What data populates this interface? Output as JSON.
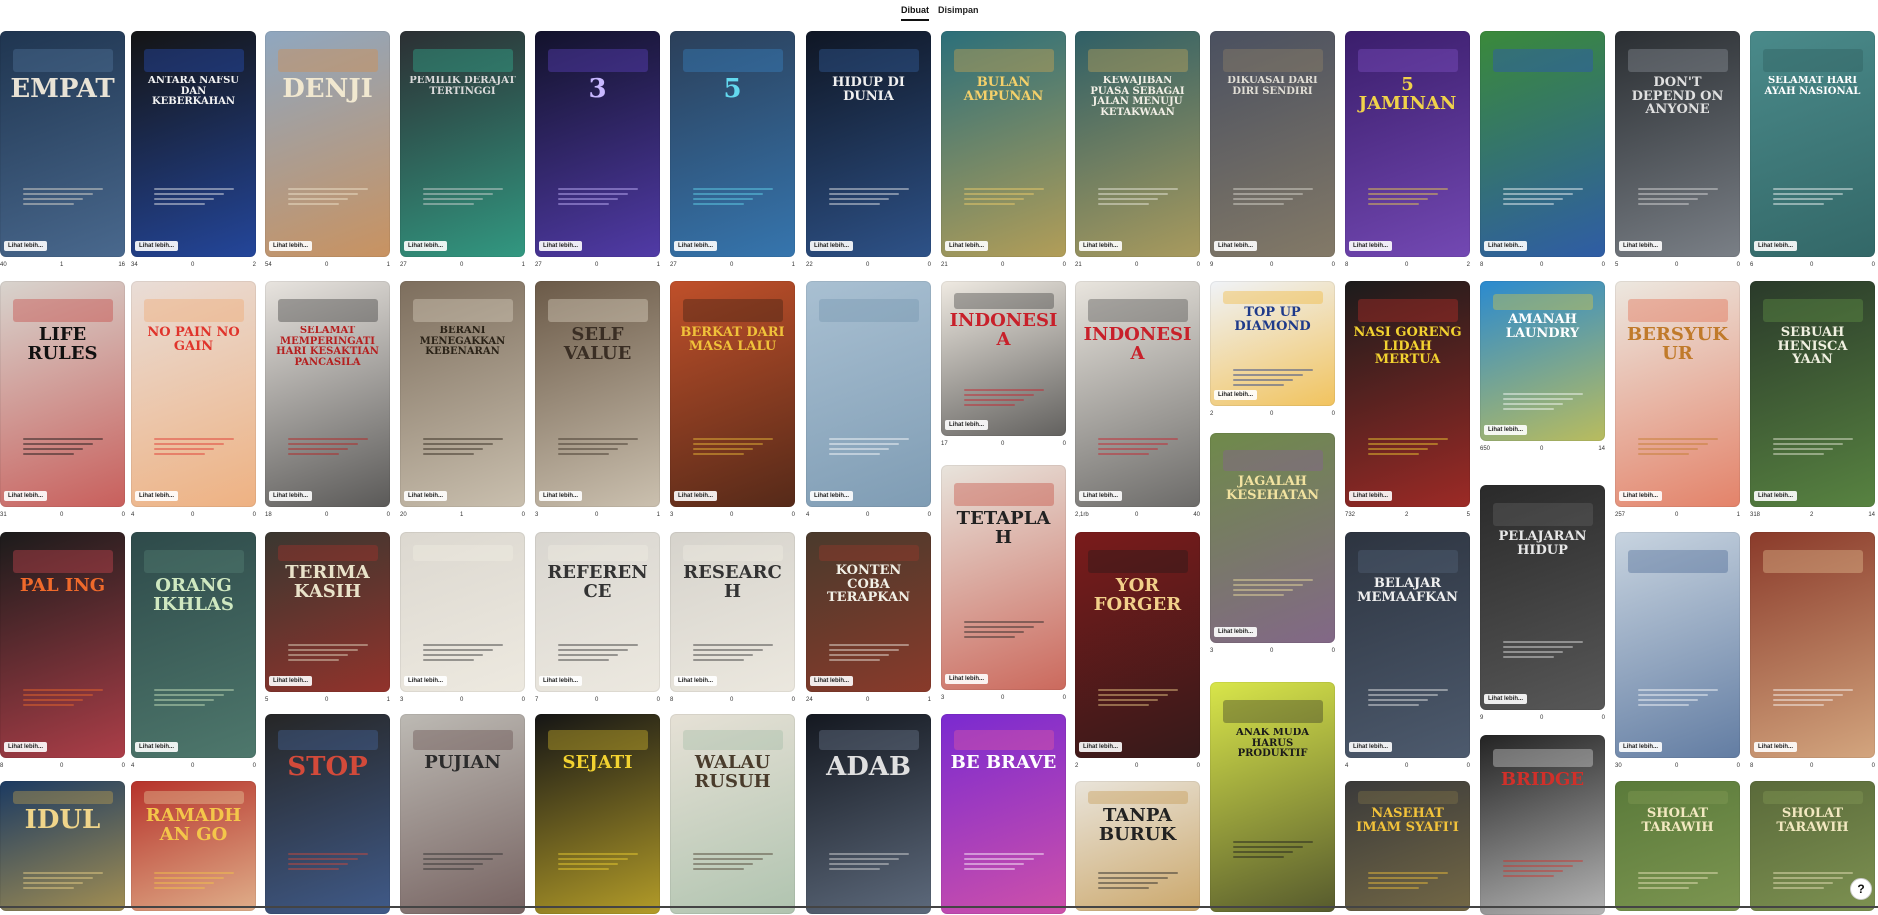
{
  "tabs": [
    {
      "label": "Dibuat",
      "active": true
    },
    {
      "label": "Disimpan",
      "active": false
    }
  ],
  "see_more_label": "Lihat lebih...",
  "help_icon": "?",
  "columns": [
    [
      {
        "title": "EMPAT",
        "bg": "#1f3550",
        "fg": "#e8e2d5",
        "acc": "#5a7da6",
        "stats": [
          "40",
          "1",
          "16"
        ]
      },
      {
        "title": "LIFE RULES",
        "bg": "#d8d4ce",
        "fg": "#111111",
        "acc": "#c2302e",
        "stats": [
          "31",
          "0",
          "0"
        ]
      },
      {
        "title": "PAL ING",
        "bg": "#1b1b1b",
        "fg": "#f06a2b",
        "acc": "#e64c5a",
        "stats": [
          "8",
          "0",
          "0"
        ]
      },
      {
        "title": "Idul",
        "bg": "#1b3a62",
        "fg": "#f0d58a",
        "acc": "#d8b04c",
        "stats": []
      }
    ],
    [
      {
        "title": "ANTARA NAFSU DAN KEBERKAHAN",
        "bg": "#141414",
        "fg": "#f2f2f2",
        "acc": "#2a5ad0",
        "stats": [
          "34",
          "0",
          "2"
        ]
      },
      {
        "title": "no pain no gain",
        "bg": "#e9ddd7",
        "fg": "#e0342c",
        "acc": "#f0a060",
        "stats": [
          "4",
          "0",
          "0"
        ]
      },
      {
        "title": "ORANG IKHLAS",
        "bg": "#2e4a4a",
        "fg": "#cfe8c0",
        "acc": "#5b8a7a",
        "stats": [
          "4",
          "0",
          "0"
        ]
      },
      {
        "title": "RAMADHAN GO",
        "bg": "#b6322a",
        "fg": "#f4c64a",
        "acc": "#f0e0b0",
        "stats": []
      }
    ],
    [
      {
        "title": "DENJI",
        "bg": "#8fa7c0",
        "fg": "#f1e8d0",
        "acc": "#e08a3a",
        "stats": [
          "54",
          "0",
          "1"
        ]
      },
      {
        "title": "SELAMAT MEMPERINGATI HARI KESAKTIAN PANCASILA",
        "bg": "#e8e4df",
        "fg": "#b51f1f",
        "acc": "#222222",
        "stats": [
          "18",
          "0",
          "0"
        ]
      },
      {
        "title": "TERIMA KASIH",
        "bg": "#3a3730",
        "fg": "#e9e2c9",
        "acc": "#b5312a",
        "stats": [
          "5",
          "0",
          "1"
        ]
      },
      {
        "title": "STOP",
        "bg": "#262626",
        "fg": "#d34a3a",
        "acc": "#4a6fb0",
        "stats": []
      }
    ],
    [
      {
        "title": "PEMILIK DERAJAT TERTINGGI",
        "bg": "#2c2f33",
        "fg": "#d9d9d9",
        "acc": "#34c2a0",
        "stats": [
          "27",
          "0",
          "1"
        ]
      },
      {
        "title": "BERANI MENEGAKKAN KEBENARAN",
        "bg": "#7d6e5d",
        "fg": "#2a2217",
        "acc": "#e8e0cf",
        "stats": [
          "20",
          "1",
          "0"
        ]
      },
      {
        "title": "",
        "bg": "#dcd8d0",
        "fg": "#333333",
        "acc": "#f4f0e6",
        "stats": [
          "3",
          "0",
          "0"
        ]
      },
      {
        "title": "PUJIAN",
        "bg": "#bdbab4",
        "fg": "#2c2c2c",
        "acc": "#5a4040",
        "stats": []
      }
    ],
    [
      {
        "title": "3",
        "bg": "#12122b",
        "fg": "#c8b8ff",
        "acc": "#6a4bd8",
        "stats": [
          "27",
          "0",
          "1"
        ]
      },
      {
        "title": "SELF VALUE",
        "bg": "#6b5a48",
        "fg": "#3a2e24",
        "acc": "#f1e9d8",
        "stats": [
          "3",
          "0",
          "1"
        ]
      },
      {
        "title": "REFERENCE",
        "bg": "#d9d6d0",
        "fg": "#333333",
        "acc": "#f4f0e6",
        "stats": [
          "7",
          "0",
          "0"
        ]
      },
      {
        "title": "SEJATI",
        "bg": "#151515",
        "fg": "#f2d230",
        "acc": "#f2d230",
        "stats": []
      }
    ],
    [
      {
        "title": "5",
        "bg": "#2b3f59",
        "fg": "#63d9ef",
        "acc": "#3a8bd0",
        "stats": [
          "27",
          "0",
          "1"
        ]
      },
      {
        "title": "BERKAT dari MASA LALU",
        "bg": "#c0502a",
        "fg": "#f0c23a",
        "acc": "#2a1a12",
        "stats": [
          "3",
          "0",
          "0"
        ]
      },
      {
        "title": "RESEARCH",
        "bg": "#d6d3cc",
        "fg": "#333333",
        "acc": "#f4f0e6",
        "stats": [
          "8",
          "0",
          "0"
        ]
      },
      {
        "title": "Walau rusuh",
        "bg": "#e6e1d6",
        "fg": "#4a3c2c",
        "acc": "#9ab8a0",
        "stats": []
      }
    ],
    [
      {
        "title": "HIDUP DI DUNIA",
        "bg": "#0f1624",
        "fg": "#f0f0f0",
        "acc": "#3a6ab0",
        "stats": [
          "22",
          "0",
          "0"
        ]
      },
      {
        "title": "",
        "bg": "#a9c0d2",
        "fg": "#ffffff",
        "acc": "#6e8ea8",
        "stats": [
          "4",
          "0",
          "0"
        ]
      },
      {
        "title": "KONTEN COBA TERAPKAN",
        "bg": "#4a3a2c",
        "fg": "#f2f0e6",
        "acc": "#a23a2a",
        "stats": [
          "24",
          "0",
          "1"
        ]
      },
      {
        "title": "ADAB",
        "bg": "#141820",
        "fg": "#e0e0e0",
        "acc": "#7a8aa0",
        "stats": []
      }
    ],
    [
      {
        "title": "BULAN AMPUNAN",
        "bg": "#2b6f7a",
        "fg": "#f4d06a",
        "acc": "#e8b04a",
        "stats": [
          "21",
          "0",
          "0"
        ]
      },
      {
        "title": "INDONESIA",
        "bg": "#efeae2",
        "fg": "#c8202a",
        "acc": "#2a2a2a",
        "stats": [
          "17",
          "0",
          "0"
        ]
      },
      {
        "title": "TETAPLAH",
        "bg": "#e8e4dc",
        "fg": "#222222",
        "acc": "#c0382a",
        "stats": [
          "3",
          "0",
          "0"
        ]
      },
      {
        "title": "BE BRAVE",
        "bg": "#7a2ad0",
        "fg": "#ffffff",
        "acc": "#f0609a",
        "stats": []
      }
    ],
    [
      {
        "title": "KEWAJIBAN PUASA SEBAGAI JALAN MENUJU KETAKWAAN",
        "bg": "#2f5f66",
        "fg": "#f2efe6",
        "acc": "#d9b25a",
        "stats": [
          "21",
          "0",
          "0"
        ]
      },
      {
        "title": "INDONESIA",
        "bg": "#e9e5de",
        "fg": "#c8202a",
        "acc": "#3a3a3a",
        "stats": [
          "2,1rb",
          "0",
          "40"
        ]
      },
      {
        "title": "Yor Forger",
        "bg": "#7a1b1b",
        "fg": "#f2d08a",
        "acc": "#1a1a1a",
        "stats": [
          "2",
          "0",
          "0"
        ]
      },
      {
        "title": "TANPA BURUK",
        "bg": "#e9e4da",
        "fg": "#222222",
        "acc": "#c09040",
        "stats": []
      }
    ],
    [
      {
        "title": "DIKUASAI DARI DIRI SENDIRI",
        "bg": "#4a5060",
        "fg": "#e0ddd4",
        "acc": "#9a8a6a",
        "stats": [
          "9",
          "0",
          "0"
        ]
      },
      {
        "title": "TOP UP DIAMOND",
        "bg": "#f0f3f8",
        "fg": "#1e3a8a",
        "acc": "#f2b020",
        "stats": [
          "2",
          "0",
          "0"
        ]
      },
      {
        "title": "JAGALAH KESEHATAN",
        "bg": "#6f8a4a",
        "fg": "#f2e2a0",
        "acc": "#8a5aa0",
        "stats": [
          "3",
          "0",
          "0"
        ]
      },
      {
        "title": "ANAK MUDA HARUS PRODUKTIF",
        "bg": "#d9e64a",
        "fg": "#1a1a1a",
        "acc": "#222222",
        "stats": []
      }
    ],
    [
      {
        "title": "5 JAMINAN",
        "bg": "#3a1d6b",
        "fg": "#f0d24a",
        "acc": "#8a5ad0",
        "stats": [
          "8",
          "0",
          "2"
        ]
      },
      {
        "title": "NASI GORENG LIDAH MERTUA",
        "bg": "#1b1b1b",
        "fg": "#f2d230",
        "acc": "#d0302a",
        "stats": [
          "732",
          "2",
          "5"
        ]
      },
      {
        "title": "BELAJAR MEMAAFKAN",
        "bg": "#2d3440",
        "fg": "#f0f0f0",
        "acc": "#5a6a80",
        "stats": [
          "4",
          "0",
          "0"
        ]
      },
      {
        "title": "NASEHAT IMAM SYAFI'I",
        "bg": "#3a3a3a",
        "fg": "#f2c23a",
        "acc": "#8a7a4a",
        "stats": []
      }
    ],
    [
      {
        "title": "",
        "bg": "#3a8a3a",
        "fg": "#ffffff",
        "acc": "#2a4ad0",
        "stats": [
          "8",
          "0",
          "0"
        ]
      },
      {
        "title": "AMANAH LAUNDRY",
        "bg": "#2a8ad0",
        "fg": "#ffffff",
        "acc": "#f2d030",
        "stats": [
          "650",
          "0",
          "14"
        ]
      },
      {
        "title": "PELAJARAN HIDUP",
        "bg": "#2a2a2a",
        "fg": "#e8e8e8",
        "acc": "#6a6a6a",
        "stats": [
          "9",
          "0",
          "0"
        ]
      },
      {
        "title": "BRIDGE",
        "bg": "#232323",
        "fg": "#d0302a",
        "acc": "#f0f0f0",
        "stats": []
      }
    ],
    [
      {
        "title": "DON'T DEPEND ON ANYONE",
        "bg": "#2a2e32",
        "fg": "#e0e0e0",
        "acc": "#9aa0a8",
        "stats": [
          "5",
          "0",
          "0"
        ]
      },
      {
        "title": "BERSYUKUR",
        "bg": "#ece8e0",
        "fg": "#c07a2a",
        "acc": "#e05a3a",
        "stats": [
          "257",
          "0",
          "1"
        ]
      },
      {
        "title": "",
        "bg": "#c8d4e0",
        "fg": "#ffffff",
        "acc": "#3a5a8a",
        "stats": [
          "30",
          "0",
          "0"
        ]
      },
      {
        "title": "SHOLAT TARAWIH",
        "bg": "#5a7a3a",
        "fg": "#f2e8c0",
        "acc": "#8aa05a",
        "stats": []
      }
    ],
    [
      {
        "title": "Selamat Hari ayah Nasional",
        "bg": "#4a8a8a",
        "fg": "#ffffff",
        "acc": "#2a5a5a",
        "stats": [
          "6",
          "0",
          "0"
        ]
      },
      {
        "title": "SEBUAH HENISCA YAAN",
        "bg": "#2a3a2a",
        "fg": "#f0f0e0",
        "acc": "#6aa04a",
        "stats": [
          "318",
          "2",
          "14"
        ]
      },
      {
        "title": "",
        "bg": "#8a3a2a",
        "fg": "#ffffff",
        "acc": "#f0d0a0",
        "stats": [
          "8",
          "0",
          "0"
        ]
      },
      {
        "title": "SHOLAT TARAWIH",
        "bg": "#5a6a3a",
        "fg": "#f2e8c0",
        "acc": "#8aa05a",
        "stats": []
      }
    ]
  ]
}
